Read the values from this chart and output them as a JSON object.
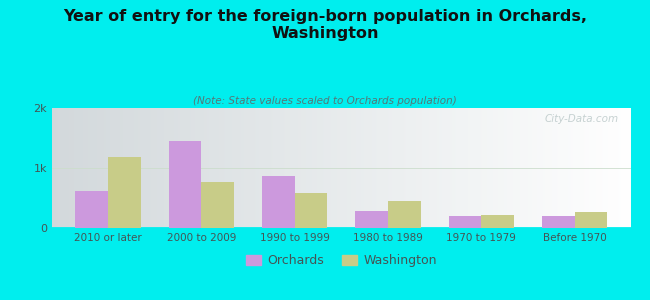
{
  "title": "Year of entry for the foreign-born population in Orchards,\nWashington",
  "subtitle": "(Note: State values scaled to Orchards population)",
  "categories": [
    "2010 or later",
    "2000 to 2009",
    "1990 to 1999",
    "1980 to 1989",
    "1970 to 1979",
    "Before 1970"
  ],
  "orchards_values": [
    620,
    1450,
    870,
    280,
    195,
    195
  ],
  "washington_values": [
    1180,
    760,
    590,
    450,
    220,
    270
  ],
  "orchards_color": "#cc99dd",
  "washington_color": "#c8cc88",
  "bg_color": "#00eeee",
  "ylim": [
    0,
    2000
  ],
  "yticks": [
    0,
    1000,
    2000
  ],
  "ytick_labels": [
    "0",
    "1k",
    "2k"
  ],
  "bar_width": 0.35,
  "watermark": "City-Data.com",
  "legend_labels": [
    "Orchards",
    "Washington"
  ],
  "title_color": "#111111",
  "subtitle_color": "#557777",
  "tick_color": "#445555"
}
